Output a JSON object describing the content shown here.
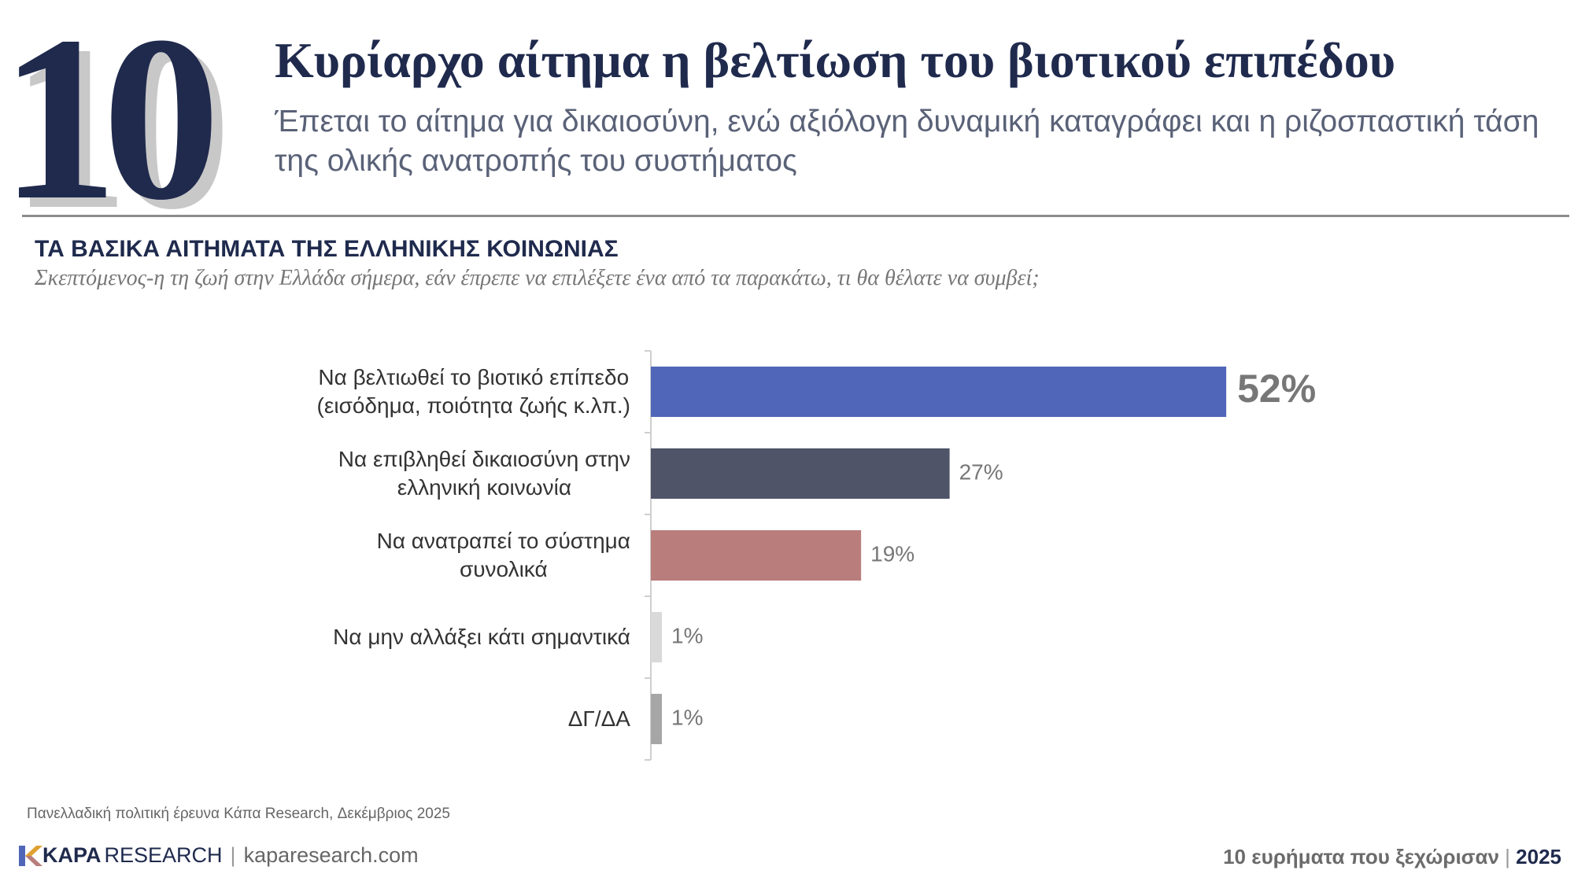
{
  "header": {
    "number": "10",
    "title": "Κυρίαρχο αίτημα η βελτίωση του βιοτικού επιπέδου",
    "subtitle": "Έπεται το αίτημα για δικαιοσύνη, ενώ αξιόλογη δυναμική καταγράφει και η ριζοσπαστική τάση της ολικής ανατροπής του συστήματος"
  },
  "chart_data": {
    "type": "bar",
    "orientation": "horizontal",
    "title": "ΤΑ ΒΑΣΙΚΑ ΑΙΤΗΜΑΤΑ ΤΗΣ ΕΛΛΗΝΙΚΗΣ ΚΟΙΝΩΝΙΑΣ",
    "subtitle": "Σκεπτόμενος-η τη ζωή στην Ελλάδα σήμερα, εάν έπρεπε να επιλέξετε ένα από τα παρακάτω, τι θα θέλατε να συμβεί;",
    "categories": [
      "Να βελτιωθεί το βιοτικό επίπεδο\n(εισόδημα, ποιότητα ζωής κ.λπ.)",
      "Να επιβληθεί δικαιοσύνη στην\nελληνική κοινωνία",
      "Να ανατραπεί το σύστημα\nσυνολικά",
      "Να μην αλλάξει κάτι σημαντικά",
      "ΔΓ/ΔΑ"
    ],
    "values": [
      52,
      27,
      19,
      1,
      1
    ],
    "value_labels": [
      "52%",
      "27%",
      "19%",
      "1%",
      "1%"
    ],
    "colors": [
      "#5066b8",
      "#505468",
      "#b97e7c",
      "#d9d9d9",
      "#a6a6a6"
    ]
  },
  "footer": {
    "source": "Πανελλαδική πολιτική έρευνα Κάπα Research, Δεκέμβριος 2025",
    "brand_bold": "KAPA",
    "brand": "RESEARCH",
    "site": "kaparesearch.com",
    "tagline": "10 ευρήματα που ξεχώρισαν",
    "year": "2025"
  }
}
